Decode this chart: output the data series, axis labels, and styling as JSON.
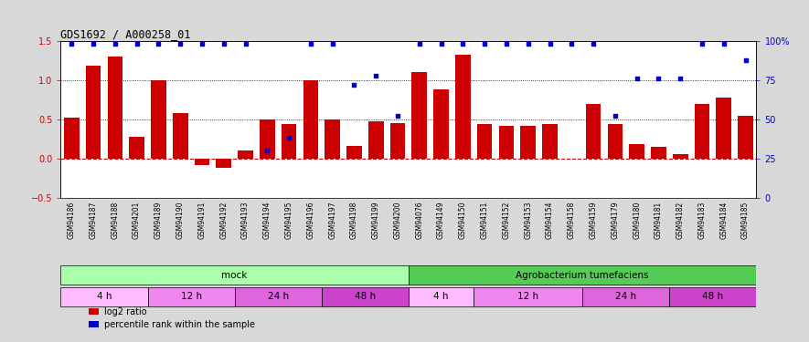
{
  "title": "GDS1692 / A000258_01",
  "categories": [
    "GSM94186",
    "GSM94187",
    "GSM94188",
    "GSM94201",
    "GSM94189",
    "GSM94190",
    "GSM94191",
    "GSM94192",
    "GSM94193",
    "GSM94194",
    "GSM94195",
    "GSM94196",
    "GSM94197",
    "GSM94198",
    "GSM94199",
    "GSM94200",
    "GSM94076",
    "GSM94149",
    "GSM94150",
    "GSM94151",
    "GSM94152",
    "GSM94153",
    "GSM94154",
    "GSM94158",
    "GSM94159",
    "GSM94179",
    "GSM94180",
    "GSM94181",
    "GSM94182",
    "GSM94183",
    "GSM94184",
    "GSM94185"
  ],
  "log2_ratio": [
    0.52,
    1.18,
    1.3,
    0.28,
    1.0,
    0.58,
    -0.08,
    -0.12,
    0.1,
    0.5,
    0.44,
    1.0,
    0.5,
    0.16,
    0.48,
    0.45,
    1.1,
    0.88,
    1.32,
    0.44,
    0.42,
    0.42,
    0.44,
    0.0,
    0.7,
    0.44,
    0.18,
    0.15,
    0.05,
    0.7,
    0.78,
    0.55
  ],
  "percentile_rank": [
    98,
    98,
    98,
    98,
    98,
    98,
    98,
    98,
    98,
    30,
    38,
    98,
    98,
    72,
    78,
    52,
    98,
    98,
    98,
    98,
    98,
    98,
    98,
    98,
    98,
    52,
    76,
    76,
    76,
    98,
    98,
    88
  ],
  "bar_color": "#cc0000",
  "scatter_color": "#0000cc",
  "bg_color": "#d8d8d8",
  "plot_bg_color": "#ffffff",
  "zero_line_color": "#cc0000",
  "infection_mock_color": "#aaffaa",
  "infection_agro_color": "#55cc55",
  "time_colors": [
    "#ffaaff",
    "#ee88ee",
    "#dd66dd",
    "#cc44cc"
  ],
  "infection_labels": [
    "mock",
    "Agrobacterium tumefaciens"
  ],
  "mock_range": [
    0,
    16
  ],
  "agro_range": [
    16,
    32
  ],
  "time_groups": [
    {
      "label": "4 h",
      "start": 0,
      "end": 4,
      "color": "#ffbbff"
    },
    {
      "label": "12 h",
      "start": 4,
      "end": 8,
      "color": "#ee88ee"
    },
    {
      "label": "24 h",
      "start": 8,
      "end": 12,
      "color": "#dd66dd"
    },
    {
      "label": "48 h",
      "start": 12,
      "end": 16,
      "color": "#cc44cc"
    },
    {
      "label": "4 h",
      "start": 16,
      "end": 19,
      "color": "#ffbbff"
    },
    {
      "label": "12 h",
      "start": 19,
      "end": 24,
      "color": "#ee88ee"
    },
    {
      "label": "24 h",
      "start": 24,
      "end": 28,
      "color": "#dd66dd"
    },
    {
      "label": "48 h",
      "start": 28,
      "end": 32,
      "color": "#cc44cc"
    }
  ],
  "ylim_left": [
    -0.5,
    1.5
  ],
  "ylim_right": [
    0,
    100
  ],
  "yticks_left": [
    -0.5,
    0.0,
    0.5,
    1.0,
    1.5
  ],
  "yticks_right": [
    0,
    25,
    50,
    75,
    100
  ],
  "ylabel_left_color": "#cc0000",
  "ylabel_right_color": "#0000cc",
  "hlines": [
    0.5,
    1.0
  ],
  "legend_items": [
    {
      "color": "#cc0000",
      "label": "log2 ratio"
    },
    {
      "color": "#0000cc",
      "label": "percentile rank within the sample"
    }
  ]
}
